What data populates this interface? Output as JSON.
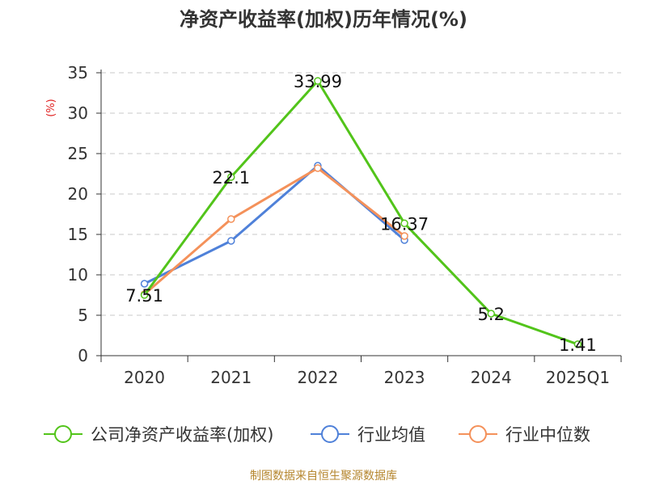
{
  "title": "净资产收益率(加权)历年情况(%)",
  "unit_label": "(%)",
  "source": "制图数据来自恒生聚源数据库",
  "colors": {
    "company": "#52c41a",
    "avg": "#4f81d9",
    "median": "#f4915a",
    "grid": "#c8c8c8",
    "axis": "#333333"
  },
  "chart_data": {
    "type": "line",
    "title": "净资产收益率(加权)历年情况(%)",
    "ylabel": "(%)",
    "xlabel": "",
    "categories": [
      "2020",
      "2021",
      "2022",
      "2023",
      "2024",
      "2025Q1"
    ],
    "ylim": [
      0,
      35
    ],
    "yticks": [
      0,
      5,
      10,
      15,
      20,
      25,
      30,
      35
    ],
    "grid": true,
    "legend_position": "bottom",
    "series": [
      {
        "name": "公司净资产收益率(加权)",
        "values": [
          7.51,
          22.1,
          33.99,
          16.37,
          5.2,
          1.41
        ],
        "labels": [
          "7.51",
          "22.1",
          "33.99",
          "16.37",
          "5.2",
          "1.41"
        ],
        "color_key": "company"
      },
      {
        "name": "行业均值",
        "values": [
          8.9,
          14.2,
          23.5,
          14.3,
          null,
          null
        ],
        "color_key": "avg"
      },
      {
        "name": "行业中位数",
        "values": [
          7.6,
          16.9,
          23.2,
          14.8,
          null,
          null
        ],
        "color_key": "median"
      }
    ]
  }
}
